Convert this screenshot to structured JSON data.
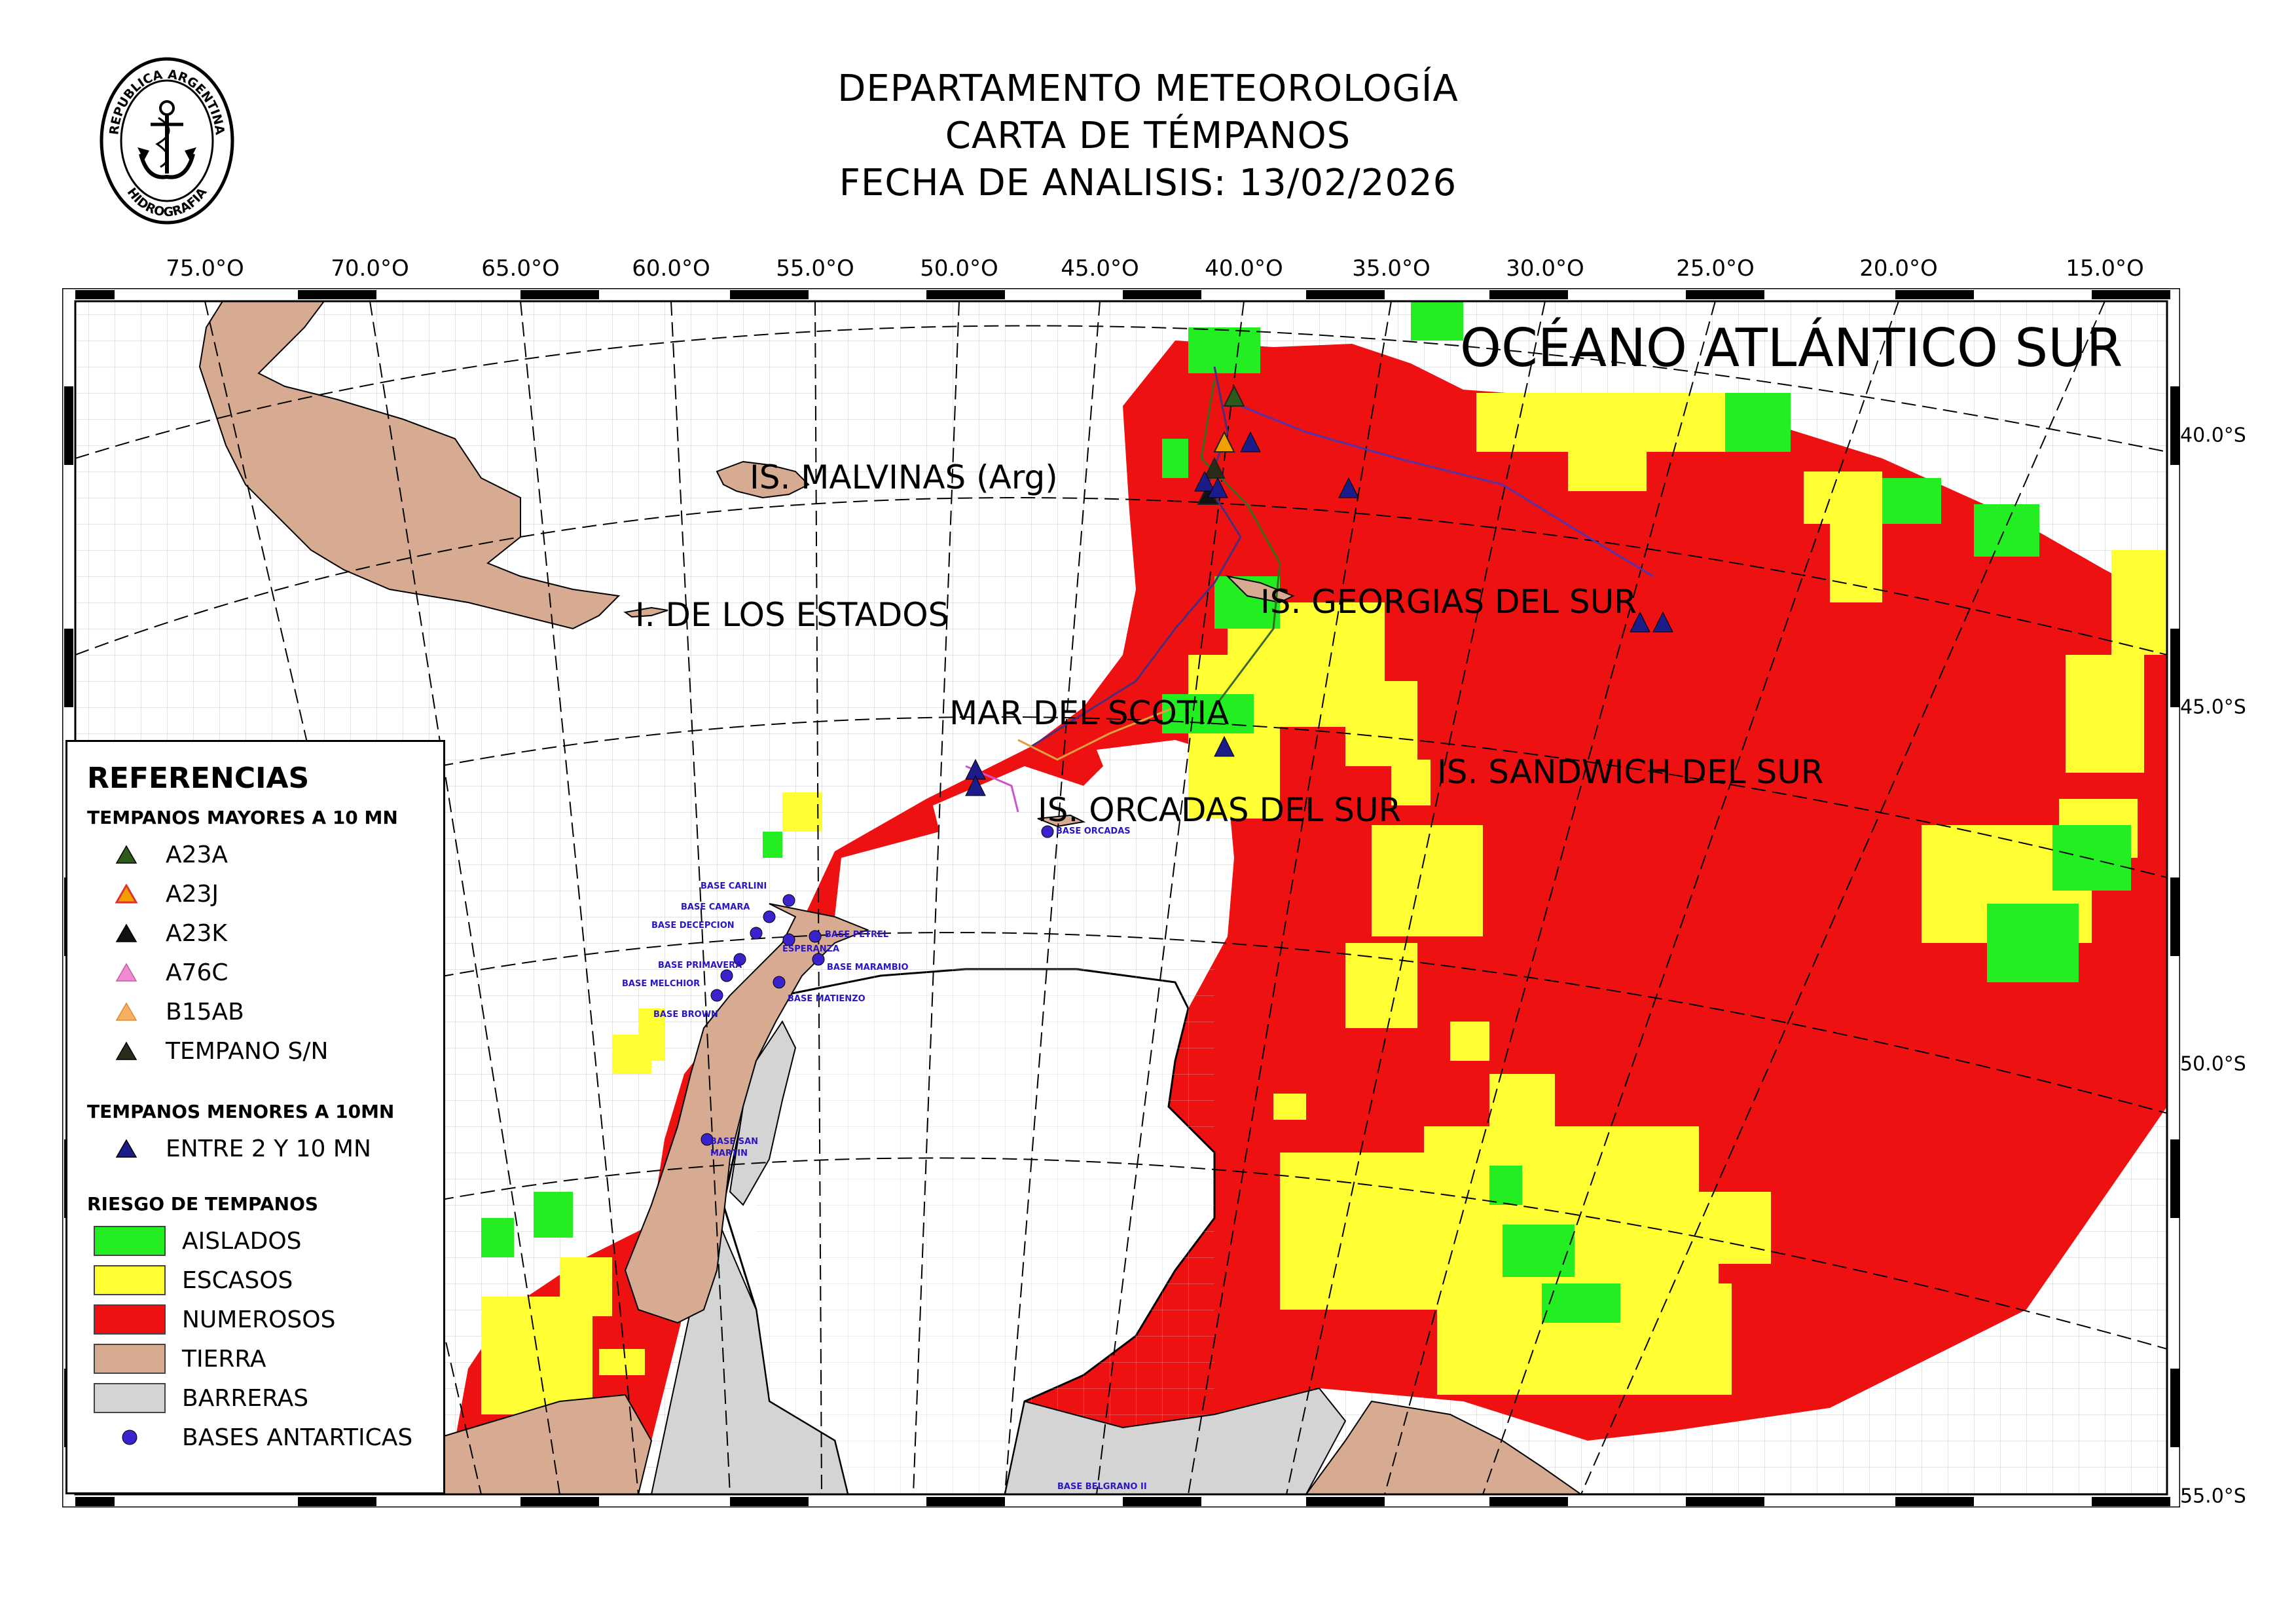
{
  "header": {
    "line1": "DEPARTAMENTO METEOROLOGÍA",
    "line2": "CARTA DE TÉMPANOS",
    "line3": "FECHA DE ANALISIS: 13/02/2026"
  },
  "seal": {
    "top_text": "REPUBLICA ARGENTINA",
    "bottom_text": "HIDROGRAFIA"
  },
  "longitude_labels": [
    "75.0°O",
    "70.0°O",
    "65.0°O",
    "60.0°O",
    "55.0°O",
    "50.0°O",
    "45.0°O",
    "40.0°O",
    "35.0°O",
    "30.0°O",
    "25.0°O",
    "20.0°O",
    "15.0°O"
  ],
  "latitude_labels": [
    "40.0°S",
    "45.0°S",
    "50.0°S",
    "55.0°S"
  ],
  "map_labels": {
    "ocean": "OCÉANO ATLÁNTICO SUR",
    "malvinas": "IS. MALVINAS (Arg)",
    "estados": "I. DE LOS ESTADOS",
    "georgias": "IS. GEORGIAS DEL SUR",
    "scotia": "MAR DEL SCOTIA",
    "sandwich": "IS. SANDWICH DEL SUR",
    "orcadas": "IS. ORCADAS DEL SUR"
  },
  "bases": {
    "carlini": "BASE CARLINI",
    "camara": "BASE CAMARA",
    "decepcion": "BASE DECEPCION",
    "petrel": "BASE PETREL",
    "esperanza": "ESPERANZA",
    "primavera": "BASE PRIMAVERA",
    "marambio": "BASE MARAMBIO",
    "melchior": "BASE MELCHIOR",
    "matienzo": "BASE MATIENZO",
    "brown": "BASE BROWN",
    "orcadas": "BASE ORCADAS",
    "san_martin_1": "BASE SAN",
    "san_martin_2": "MARTIN",
    "belgrano": "BASE BELGRANO II"
  },
  "legend": {
    "title": "REFERENCIAS",
    "section_large": "TEMPANOS MAYORES A 10 MN",
    "large_items": [
      {
        "label": "A23A",
        "color": "#2d5a1b"
      },
      {
        "label": "A23J",
        "color": "#f2a000"
      },
      {
        "label": "A23K",
        "color": "#111111"
      },
      {
        "label": "A76C",
        "color": "#f08ad4"
      },
      {
        "label": "B15AB",
        "color": "#f5b060"
      },
      {
        "label": "TEMPANO S/N",
        "color": "#2b2b1a"
      }
    ],
    "section_small": "TEMPANOS MENORES A 10MN",
    "small_items": [
      {
        "label": "ENTRE 2 Y 10 MN",
        "color": "#1b1b8a"
      }
    ],
    "section_risk": "RIESGO DE TEMPANOS",
    "risk_items": [
      {
        "label": "AISLADOS",
        "color": "#22ee22"
      },
      {
        "label": "ESCASOS",
        "color": "#ffff33"
      },
      {
        "label": "NUMEROSOS",
        "color": "#ee1111"
      },
      {
        "label": "TIERRA",
        "color": "#d7aa92"
      },
      {
        "label": "BARRERAS",
        "color": "#d4d4d4"
      },
      {
        "label": "BASES ANTARTICAS",
        "color": "#3a22cc",
        "icon": "circle"
      }
    ]
  },
  "colors": {
    "land": "#d7aa92",
    "ice_shelf": "#d4d4d4",
    "numerosos": "#ee1111",
    "escasos": "#ffff33",
    "aislados": "#22ee22",
    "base_marker": "#3a22cc"
  }
}
